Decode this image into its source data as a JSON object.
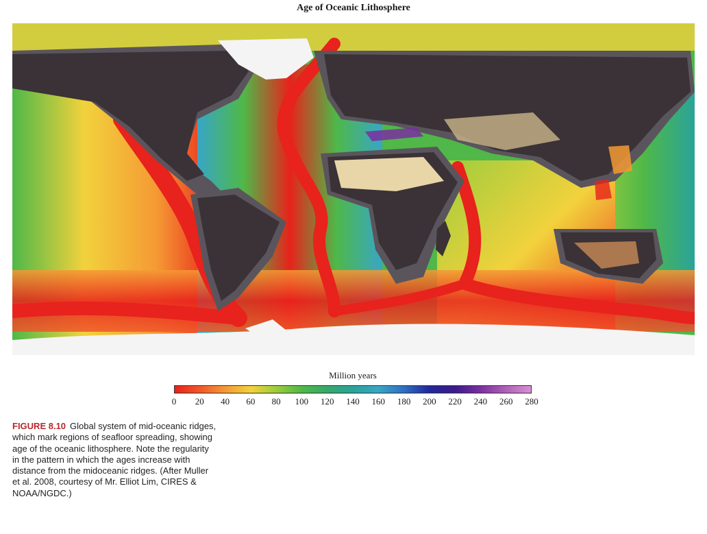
{
  "title": "Age of Oceanic Lithosphere",
  "legend": {
    "title": "Million years",
    "ticks": [
      "0",
      "20",
      "40",
      "60",
      "80",
      "100",
      "120",
      "140",
      "160",
      "180",
      "200",
      "220",
      "240",
      "260",
      "280"
    ],
    "colors": [
      "#e8221c",
      "#f0582a",
      "#f59a34",
      "#f2d23c",
      "#9ccc3c",
      "#4fb848",
      "#36a86a",
      "#2aa39a",
      "#38a6c6",
      "#2f6fc0",
      "#23289a",
      "#3b1a8a",
      "#7a2fa0",
      "#b060b8",
      "#d890d2"
    ]
  },
  "map": {
    "land_color": "#3a3236",
    "shelf_color": "#5a555c",
    "ice_color": "#f4f4f4"
  },
  "caption": {
    "label": "FIGURE 8.10",
    "text": "Global system of mid-oceanic ridges, which mark regions of seafloor spreading, showing age of the oceanic lithosphere. Note the regularity in the pattern in which the ages increase with distance from the midoceanic ridges. (After Muller et al. 2008, courtesy of Mr. Elliot Lim, CIRES & NOAA/NGDC.)"
  }
}
